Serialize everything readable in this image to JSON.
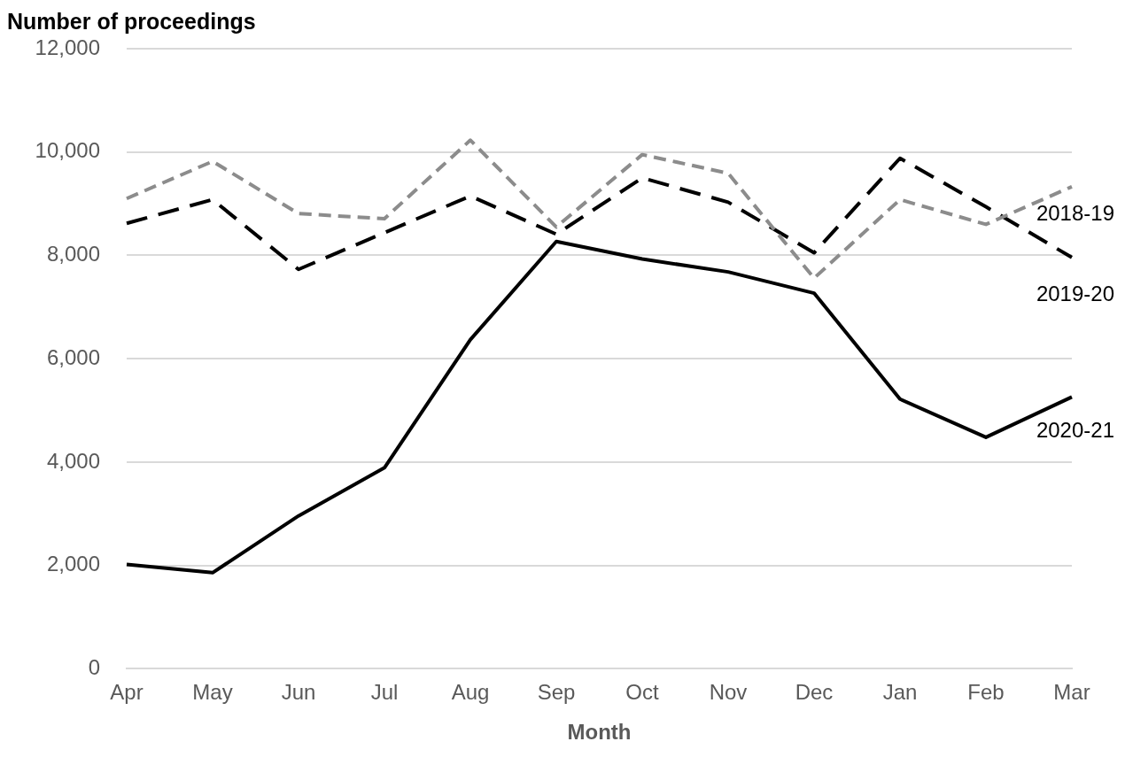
{
  "chart_data": {
    "type": "line",
    "ylabel": "Number of proceedings",
    "xlabel": "Month",
    "categories": [
      "Apr",
      "May",
      "Jun",
      "Jul",
      "Aug",
      "Sep",
      "Oct",
      "Nov",
      "Dec",
      "Jan",
      "Feb",
      "Mar"
    ],
    "series": [
      {
        "name": "2018-19",
        "color": "#8c8c8c",
        "line_style": "dashed",
        "values": [
          9100,
          9820,
          8810,
          8710,
          10230,
          8550,
          9950,
          9590,
          7560,
          9080,
          8600,
          9330
        ]
      },
      {
        "name": "2019-20",
        "color": "#000000",
        "line_style": "dashed",
        "values": [
          8620,
          9080,
          7730,
          8440,
          9150,
          8410,
          9500,
          9030,
          8050,
          9880,
          8940,
          7960
        ]
      },
      {
        "name": "2020-21",
        "color": "#000000",
        "line_style": "solid",
        "values": [
          2020,
          1860,
          2960,
          3890,
          6370,
          8270,
          7930,
          7680,
          7270,
          5220,
          4480,
          5260
        ]
      }
    ],
    "ylim": [
      0,
      12000
    ],
    "yticks": [
      0,
      {
        "value": 2000,
        "label": "2,000"
      },
      {
        "value": 4000,
        "label": "4,000"
      },
      {
        "value": 6000,
        "label": "6,000"
      },
      {
        "value": 8000,
        "label": "8,000"
      },
      {
        "value": 10000,
        "label": "10,000"
      },
      {
        "value": 12000,
        "label": "12,000"
      }
    ],
    "grid": "y",
    "legend": false,
    "marker": "none"
  }
}
